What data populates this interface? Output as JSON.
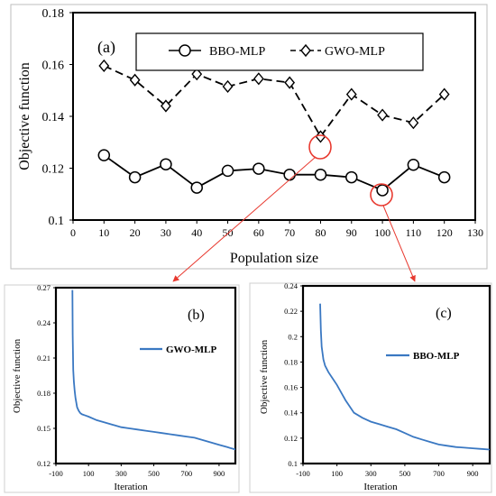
{
  "chart_data": [
    {
      "label": "(a)",
      "type": "line",
      "xlabel": "Population size",
      "ylabel": "Objective function",
      "xlim": [
        0,
        130
      ],
      "ylim": [
        0.1,
        0.18
      ],
      "x_ticks": [
        "0",
        "10",
        "20",
        "30",
        "40",
        "50",
        "60",
        "70",
        "80",
        "90",
        "100",
        "110",
        "120",
        "130"
      ],
      "y_ticks": [
        "0.1",
        "0.12",
        "0.14",
        "0.16",
        "0.18"
      ],
      "legend_position": "top",
      "x": [
        10,
        20,
        30,
        40,
        50,
        60,
        70,
        80,
        90,
        100,
        110,
        120
      ],
      "series": [
        {
          "name": "BBO-MLP",
          "marker": "circle",
          "line": "solid",
          "values": [
            0.125,
            0.1165,
            0.1215,
            0.1125,
            0.119,
            0.1198,
            0.1175,
            0.1175,
            0.1165,
            0.1115,
            0.1213,
            0.1165
          ]
        },
        {
          "name": "GWO-MLP",
          "marker": "diamond",
          "line": "dashed",
          "values": [
            0.1595,
            0.154,
            0.144,
            0.1563,
            0.1515,
            0.1545,
            0.153,
            0.1322,
            0.1485,
            0.1405,
            0.1375,
            0.1485
          ]
        }
      ],
      "highlights": [
        {
          "series": "GWO-MLP",
          "x": 80,
          "links_to": "(b)"
        },
        {
          "series": "BBO-MLP",
          "x": 100,
          "links_to": "(c)"
        }
      ]
    },
    {
      "label": "(b)",
      "type": "line",
      "xlabel": "Iteration",
      "ylabel": "Objective function",
      "xlim": [
        -100,
        1000
      ],
      "ylim": [
        0.12,
        0.27
      ],
      "x_ticks": [
        "-100",
        "100",
        "300",
        "500",
        "700",
        "900"
      ],
      "y_ticks": [
        "0.12",
        "0.15",
        "0.18",
        "0.21",
        "0.24",
        "0.27"
      ],
      "legend_position": "top-right",
      "series": [
        {
          "name": "GWO-MLP",
          "x": [
            1,
            3,
            6,
            10,
            15,
            20,
            30,
            40,
            50,
            60,
            80,
            100,
            150,
            200,
            250,
            300,
            350,
            400,
            450,
            500,
            550,
            600,
            650,
            700,
            750,
            800,
            850,
            900,
            950,
            1000
          ],
          "values": [
            0.268,
            0.23,
            0.2,
            0.19,
            0.182,
            0.176,
            0.168,
            0.165,
            0.163,
            0.162,
            0.161,
            0.16,
            0.157,
            0.155,
            0.153,
            0.151,
            0.15,
            0.149,
            0.148,
            0.147,
            0.146,
            0.145,
            0.144,
            0.143,
            0.142,
            0.14,
            0.138,
            0.136,
            0.134,
            0.132
          ]
        }
      ]
    },
    {
      "label": "(c)",
      "type": "line",
      "xlabel": "Iteration",
      "ylabel": "Objective function",
      "xlim": [
        -100,
        1000
      ],
      "ylim": [
        0.1,
        0.24
      ],
      "x_ticks": [
        "-100",
        "100",
        "300",
        "500",
        "700",
        "900"
      ],
      "y_ticks": [
        "0.1",
        "0.12",
        "0.14",
        "0.16",
        "0.18",
        "0.2",
        "0.22",
        "0.24"
      ],
      "legend_position": "top-right",
      "series": [
        {
          "name": "BBO-MLP",
          "x": [
            1,
            5,
            10,
            20,
            30,
            50,
            75,
            100,
            150,
            200,
            250,
            300,
            350,
            400,
            450,
            500,
            550,
            600,
            650,
            700,
            750,
            800,
            850,
            900,
            950,
            1000
          ],
          "values": [
            0.226,
            0.205,
            0.192,
            0.182,
            0.177,
            0.172,
            0.167,
            0.162,
            0.15,
            0.14,
            0.136,
            0.133,
            0.131,
            0.129,
            0.127,
            0.124,
            0.121,
            0.119,
            0.117,
            0.115,
            0.114,
            0.113,
            0.1125,
            0.112,
            0.1115,
            0.111
          ]
        }
      ]
    }
  ]
}
